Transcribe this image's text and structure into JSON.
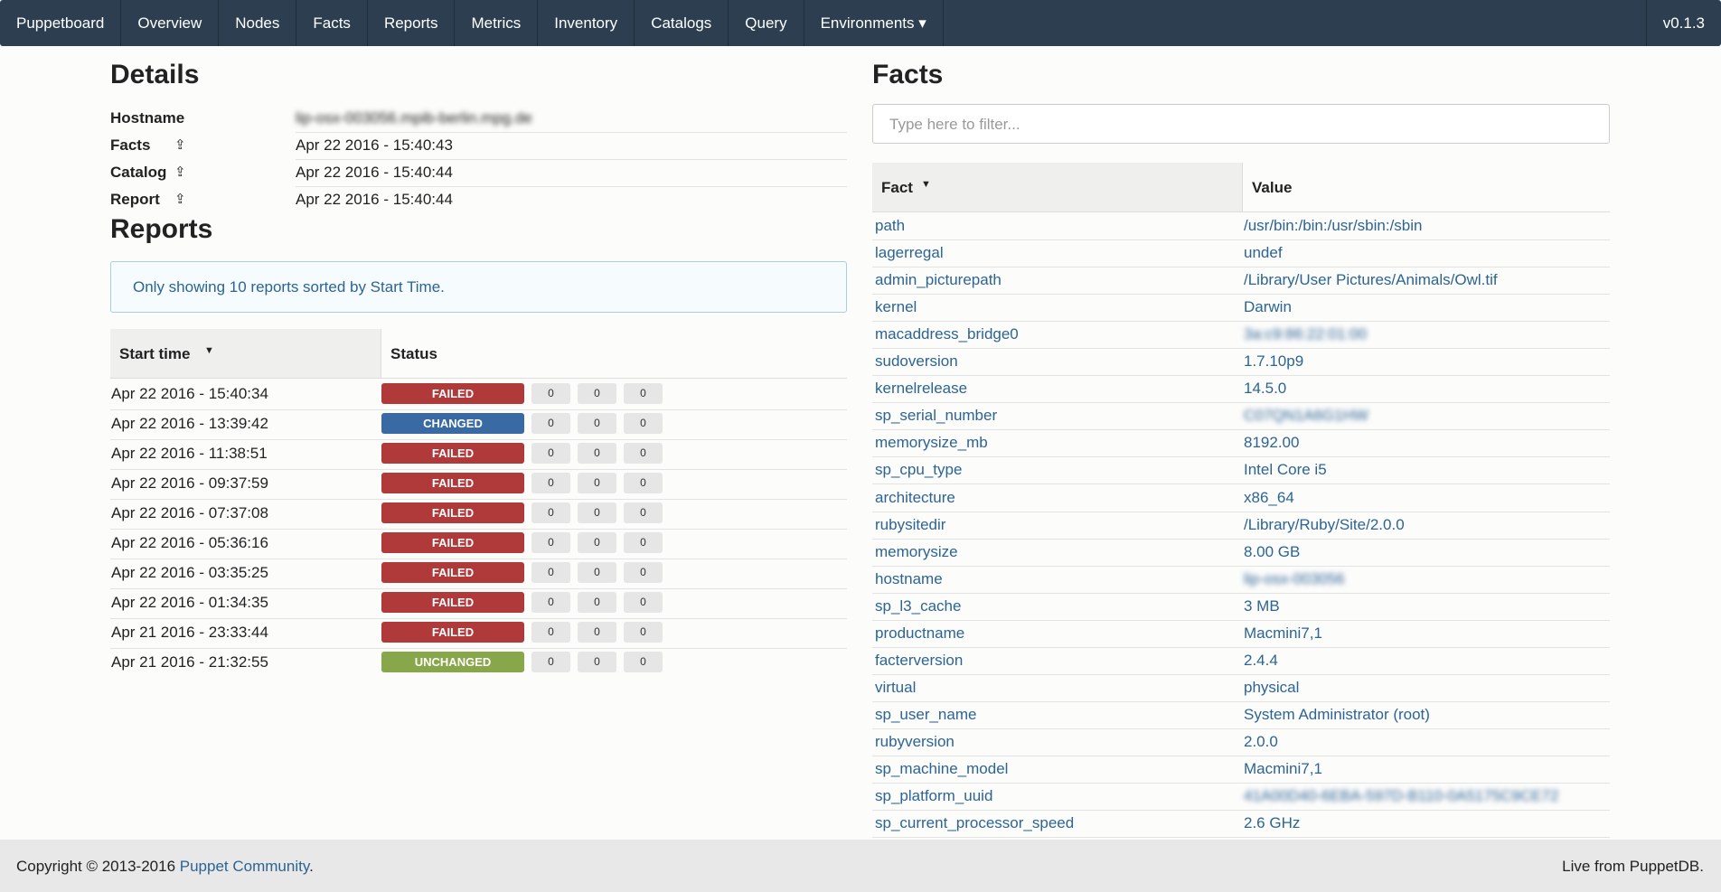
{
  "nav": {
    "items": [
      "Puppetboard",
      "Overview",
      "Nodes",
      "Facts",
      "Reports",
      "Metrics",
      "Inventory",
      "Catalogs",
      "Query",
      "Environments"
    ],
    "version": "v0.1.3"
  },
  "details": {
    "title": "Details",
    "rows": [
      {
        "label": "Hostname",
        "value": "lip-osx-003056.mpib-berlin.mpg.de"
      },
      {
        "label": "Facts",
        "value": "Apr 22 2016 - 15:40:43"
      },
      {
        "label": "Catalog",
        "value": "Apr 22 2016 - 15:40:44"
      },
      {
        "label": "Report",
        "value": "Apr 22 2016 - 15:40:44"
      }
    ]
  },
  "reports": {
    "title": "Reports",
    "notice": "Only showing 10 reports sorted by Start Time.",
    "headers": [
      "Start time",
      "Status"
    ],
    "rows": [
      {
        "start": "Apr 22 2016 - 15:40:34",
        "status": "FAILED",
        "counts": [
          0,
          0,
          0
        ]
      },
      {
        "start": "Apr 22 2016 - 13:39:42",
        "status": "CHANGED",
        "counts": [
          0,
          0,
          0
        ]
      },
      {
        "start": "Apr 22 2016 - 11:38:51",
        "status": "FAILED",
        "counts": [
          0,
          0,
          0
        ]
      },
      {
        "start": "Apr 22 2016 - 09:37:59",
        "status": "FAILED",
        "counts": [
          0,
          0,
          0
        ]
      },
      {
        "start": "Apr 22 2016 - 07:37:08",
        "status": "FAILED",
        "counts": [
          0,
          0,
          0
        ]
      },
      {
        "start": "Apr 22 2016 - 05:36:16",
        "status": "FAILED",
        "counts": [
          0,
          0,
          0
        ]
      },
      {
        "start": "Apr 22 2016 - 03:35:25",
        "status": "FAILED",
        "counts": [
          0,
          0,
          0
        ]
      },
      {
        "start": "Apr 22 2016 - 01:34:35",
        "status": "FAILED",
        "counts": [
          0,
          0,
          0
        ]
      },
      {
        "start": "Apr 21 2016 - 23:33:44",
        "status": "FAILED",
        "counts": [
          0,
          0,
          0
        ]
      },
      {
        "start": "Apr 21 2016 - 21:32:55",
        "status": "UNCHANGED",
        "counts": [
          0,
          0,
          0
        ]
      }
    ]
  },
  "facts": {
    "title": "Facts",
    "filter_placeholder": "Type here to filter...",
    "headers": [
      "Fact",
      "Value"
    ],
    "rows": [
      [
        "path",
        "/usr/bin:/bin:/usr/sbin:/sbin"
      ],
      [
        "lagerregal",
        "undef"
      ],
      [
        "admin_picturepath",
        "/Library/User Pictures/Animals/Owl.tif"
      ],
      [
        "kernel",
        "Darwin"
      ],
      [
        "macaddress_bridge0",
        "3a:c9:86:22:01:00"
      ],
      [
        "sudoversion",
        "1.7.10p9"
      ],
      [
        "kernelrelease",
        "14.5.0"
      ],
      [
        "sp_serial_number",
        "C07QN1A6G1HW"
      ],
      [
        "memorysize_mb",
        "8192.00"
      ],
      [
        "sp_cpu_type",
        "Intel Core i5"
      ],
      [
        "architecture",
        "x86_64"
      ],
      [
        "rubysitedir",
        "/Library/Ruby/Site/2.0.0"
      ],
      [
        "memorysize",
        "8.00 GB"
      ],
      [
        "hostname",
        "lip-osx-003056"
      ],
      [
        "sp_l3_cache",
        "3 MB"
      ],
      [
        "productname",
        "Macmini7,1"
      ],
      [
        "facterversion",
        "2.4.4"
      ],
      [
        "virtual",
        "physical"
      ],
      [
        "sp_user_name",
        "System Administrator (root)"
      ],
      [
        "rubyversion",
        "2.0.0"
      ],
      [
        "sp_machine_model",
        "Macmini7,1"
      ],
      [
        "sp_platform_uuid",
        "41A00D40-6EBA-597D-B110-0A5175C9CE72"
      ],
      [
        "sp_current_processor_speed",
        "2.6 GHz"
      ]
    ]
  },
  "footer": {
    "copyright": "Copyright © 2013-2016",
    "link": "Puppet Community",
    "end": ".",
    "live": "Live from PuppetDB."
  }
}
